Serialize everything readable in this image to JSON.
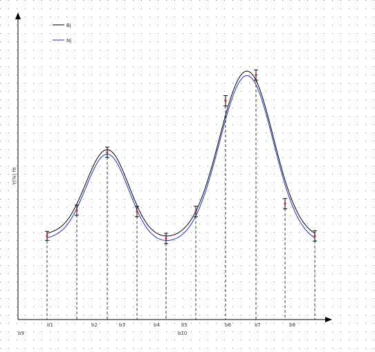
{
  "chart_data": {
    "type": "line",
    "title": "",
    "xlabel": "",
    "ylabel": "Y(%) fit",
    "x_tick_labels": [
      "b1",
      "b2",
      "b3",
      "b4",
      "b5",
      "b6",
      "b7",
      "b8"
    ],
    "x_tick_labels_lower": [
      "b9",
      "b10"
    ],
    "measured_points": {
      "x": [
        1,
        2,
        3,
        4,
        5,
        6,
        7,
        8,
        9,
        10
      ],
      "y": [
        6.5,
        8.5,
        13.0,
        8.4,
        6.3,
        8.4,
        17.0,
        19.0,
        9.0,
        6.5
      ],
      "error": [
        0.35,
        0.4,
        0.4,
        0.4,
        0.4,
        0.4,
        0.4,
        0.4,
        0.4,
        0.4
      ]
    },
    "series": [
      {
        "name": "Bj",
        "color": "#000000",
        "offset": 0.0
      },
      {
        "name": "Nj",
        "color": "#1f2fbf",
        "offset": -0.35
      }
    ],
    "grid": true,
    "legend": "top-left",
    "marker_colors": {
      "error_bar": "#000000",
      "point": "#cc2222"
    }
  }
}
